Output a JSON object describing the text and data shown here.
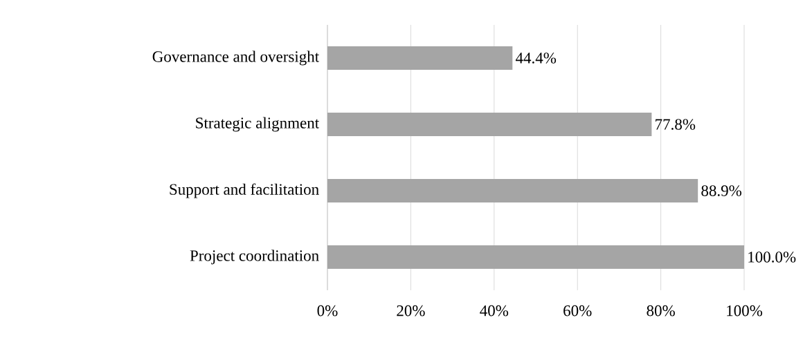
{
  "chart_data": {
    "type": "bar",
    "orientation": "horizontal",
    "categories": [
      "Governance and oversight",
      "Strategic alignment",
      "Support and facilitation",
      "Project coordination"
    ],
    "values": [
      44.4,
      77.8,
      88.9,
      100.0
    ],
    "value_labels": [
      "44.4%",
      "77.8%",
      "88.9%",
      "100.0%"
    ],
    "color": "#a5a5a5",
    "xlim": [
      0,
      100
    ],
    "xticks": [
      {
        "value": 0,
        "label": "0%"
      },
      {
        "value": 20,
        "label": "20%"
      },
      {
        "value": 40,
        "label": "40%"
      },
      {
        "value": 60,
        "label": "60%"
      },
      {
        "value": 80,
        "label": "80%"
      },
      {
        "value": 100,
        "label": "100%"
      }
    ],
    "grid": "x"
  }
}
